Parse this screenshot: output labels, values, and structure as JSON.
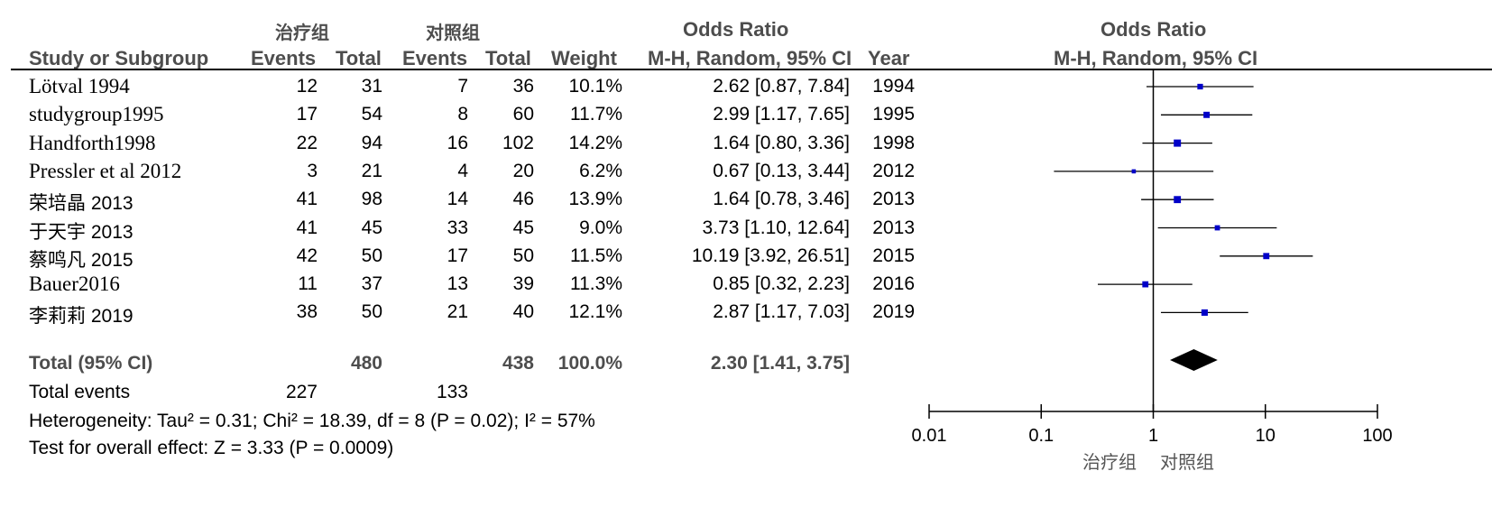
{
  "header": {
    "treatment_group": "治疗组",
    "control_group": "对照组",
    "or_title": "Odds Ratio",
    "plot_title": "Odds Ratio",
    "col_study": "Study or Subgroup",
    "col_events_t": "Events",
    "col_total_t": "Total",
    "col_events_c": "Events",
    "col_total_c": "Total",
    "col_weight": "Weight",
    "col_method": "M-H, Random, 95% CI",
    "col_year": "Year",
    "plot_method": "M-H, Random, 95% CI"
  },
  "summary": {
    "label": "Total (95% CI)",
    "total_t": "480",
    "total_c": "438",
    "weight": "100.0%",
    "ci_text": "2.30 [1.41, 3.75]",
    "events_label": "Total events",
    "events_t": "227",
    "events_c": "133",
    "heterogeneity": "Heterogeneity: Tau² = 0.31; Chi² = 18.39, df = 8 (P = 0.02); I² = 57%",
    "overall_effect": "Test for overall effect: Z = 3.33 (P = 0.0009)"
  },
  "axis": {
    "left_label": "治疗组",
    "right_label": "对照组"
  },
  "chart_data": {
    "type": "forest",
    "scale": "log",
    "xlim": [
      0.01,
      100
    ],
    "ticks": [
      {
        "value": 0.01,
        "label": "0.01"
      },
      {
        "value": 0.1,
        "label": "0.1"
      },
      {
        "value": 1,
        "label": "1"
      },
      {
        "value": 10,
        "label": "10"
      },
      {
        "value": 100,
        "label": "100"
      }
    ],
    "studies": [
      {
        "study": "Lötval 1994",
        "events_t": "12",
        "total_t": "31",
        "events_c": "7",
        "total_c": "36",
        "weight": "10.1%",
        "ci_text": "2.62 [0.87, 7.84]",
        "year": "1994",
        "or": 2.62,
        "lo": 0.87,
        "hi": 7.84
      },
      {
        "study": "studygroup1995",
        "events_t": "17",
        "total_t": "54",
        "events_c": "8",
        "total_c": "60",
        "weight": "11.7%",
        "ci_text": "2.99 [1.17, 7.65]",
        "year": "1995",
        "or": 2.99,
        "lo": 1.17,
        "hi": 7.65
      },
      {
        "study": "Handforth1998",
        "events_t": "22",
        "total_t": "94",
        "events_c": "16",
        "total_c": "102",
        "weight": "14.2%",
        "ci_text": "1.64 [0.80, 3.36]",
        "year": "1998",
        "or": 1.64,
        "lo": 0.8,
        "hi": 3.36
      },
      {
        "study": "Pressler et al 2012",
        "events_t": "3",
        "total_t": "21",
        "events_c": "4",
        "total_c": "20",
        "weight": "6.2%",
        "ci_text": "0.67 [0.13, 3.44]",
        "year": "2012",
        "or": 0.67,
        "lo": 0.13,
        "hi": 3.44
      },
      {
        "study": "荣培晶 2013",
        "events_t": "41",
        "total_t": "98",
        "events_c": "14",
        "total_c": "46",
        "weight": "13.9%",
        "ci_text": "1.64 [0.78, 3.46]",
        "year": "2013",
        "or": 1.64,
        "lo": 0.78,
        "hi": 3.46
      },
      {
        "study": "于天宇 2013",
        "events_t": "41",
        "total_t": "45",
        "events_c": "33",
        "total_c": "45",
        "weight": "9.0%",
        "ci_text": "3.73 [1.10, 12.64]",
        "year": "2013",
        "or": 3.73,
        "lo": 1.1,
        "hi": 12.64
      },
      {
        "study": "蔡鸣凡 2015",
        "events_t": "42",
        "total_t": "50",
        "events_c": "17",
        "total_c": "50",
        "weight": "11.5%",
        "ci_text": "10.19 [3.92, 26.51]",
        "year": "2015",
        "or": 10.19,
        "lo": 3.92,
        "hi": 26.51
      },
      {
        "study": "Bauer2016",
        "events_t": "11",
        "total_t": "37",
        "events_c": "13",
        "total_c": "39",
        "weight": "11.3%",
        "ci_text": "0.85 [0.32, 2.23]",
        "year": "2016",
        "or": 0.85,
        "lo": 0.32,
        "hi": 2.23
      },
      {
        "study": "李莉莉 2019",
        "events_t": "38",
        "total_t": "50",
        "events_c": "21",
        "total_c": "40",
        "weight": "12.1%",
        "ci_text": "2.87 [1.17, 7.03]",
        "year": "2019",
        "or": 2.87,
        "lo": 1.17,
        "hi": 7.03
      }
    ],
    "pooled": {
      "or": 2.3,
      "lo": 1.41,
      "hi": 3.75
    },
    "colors": {
      "marker": "#0000c8",
      "line": "#000000",
      "diamond": "#000000"
    }
  }
}
